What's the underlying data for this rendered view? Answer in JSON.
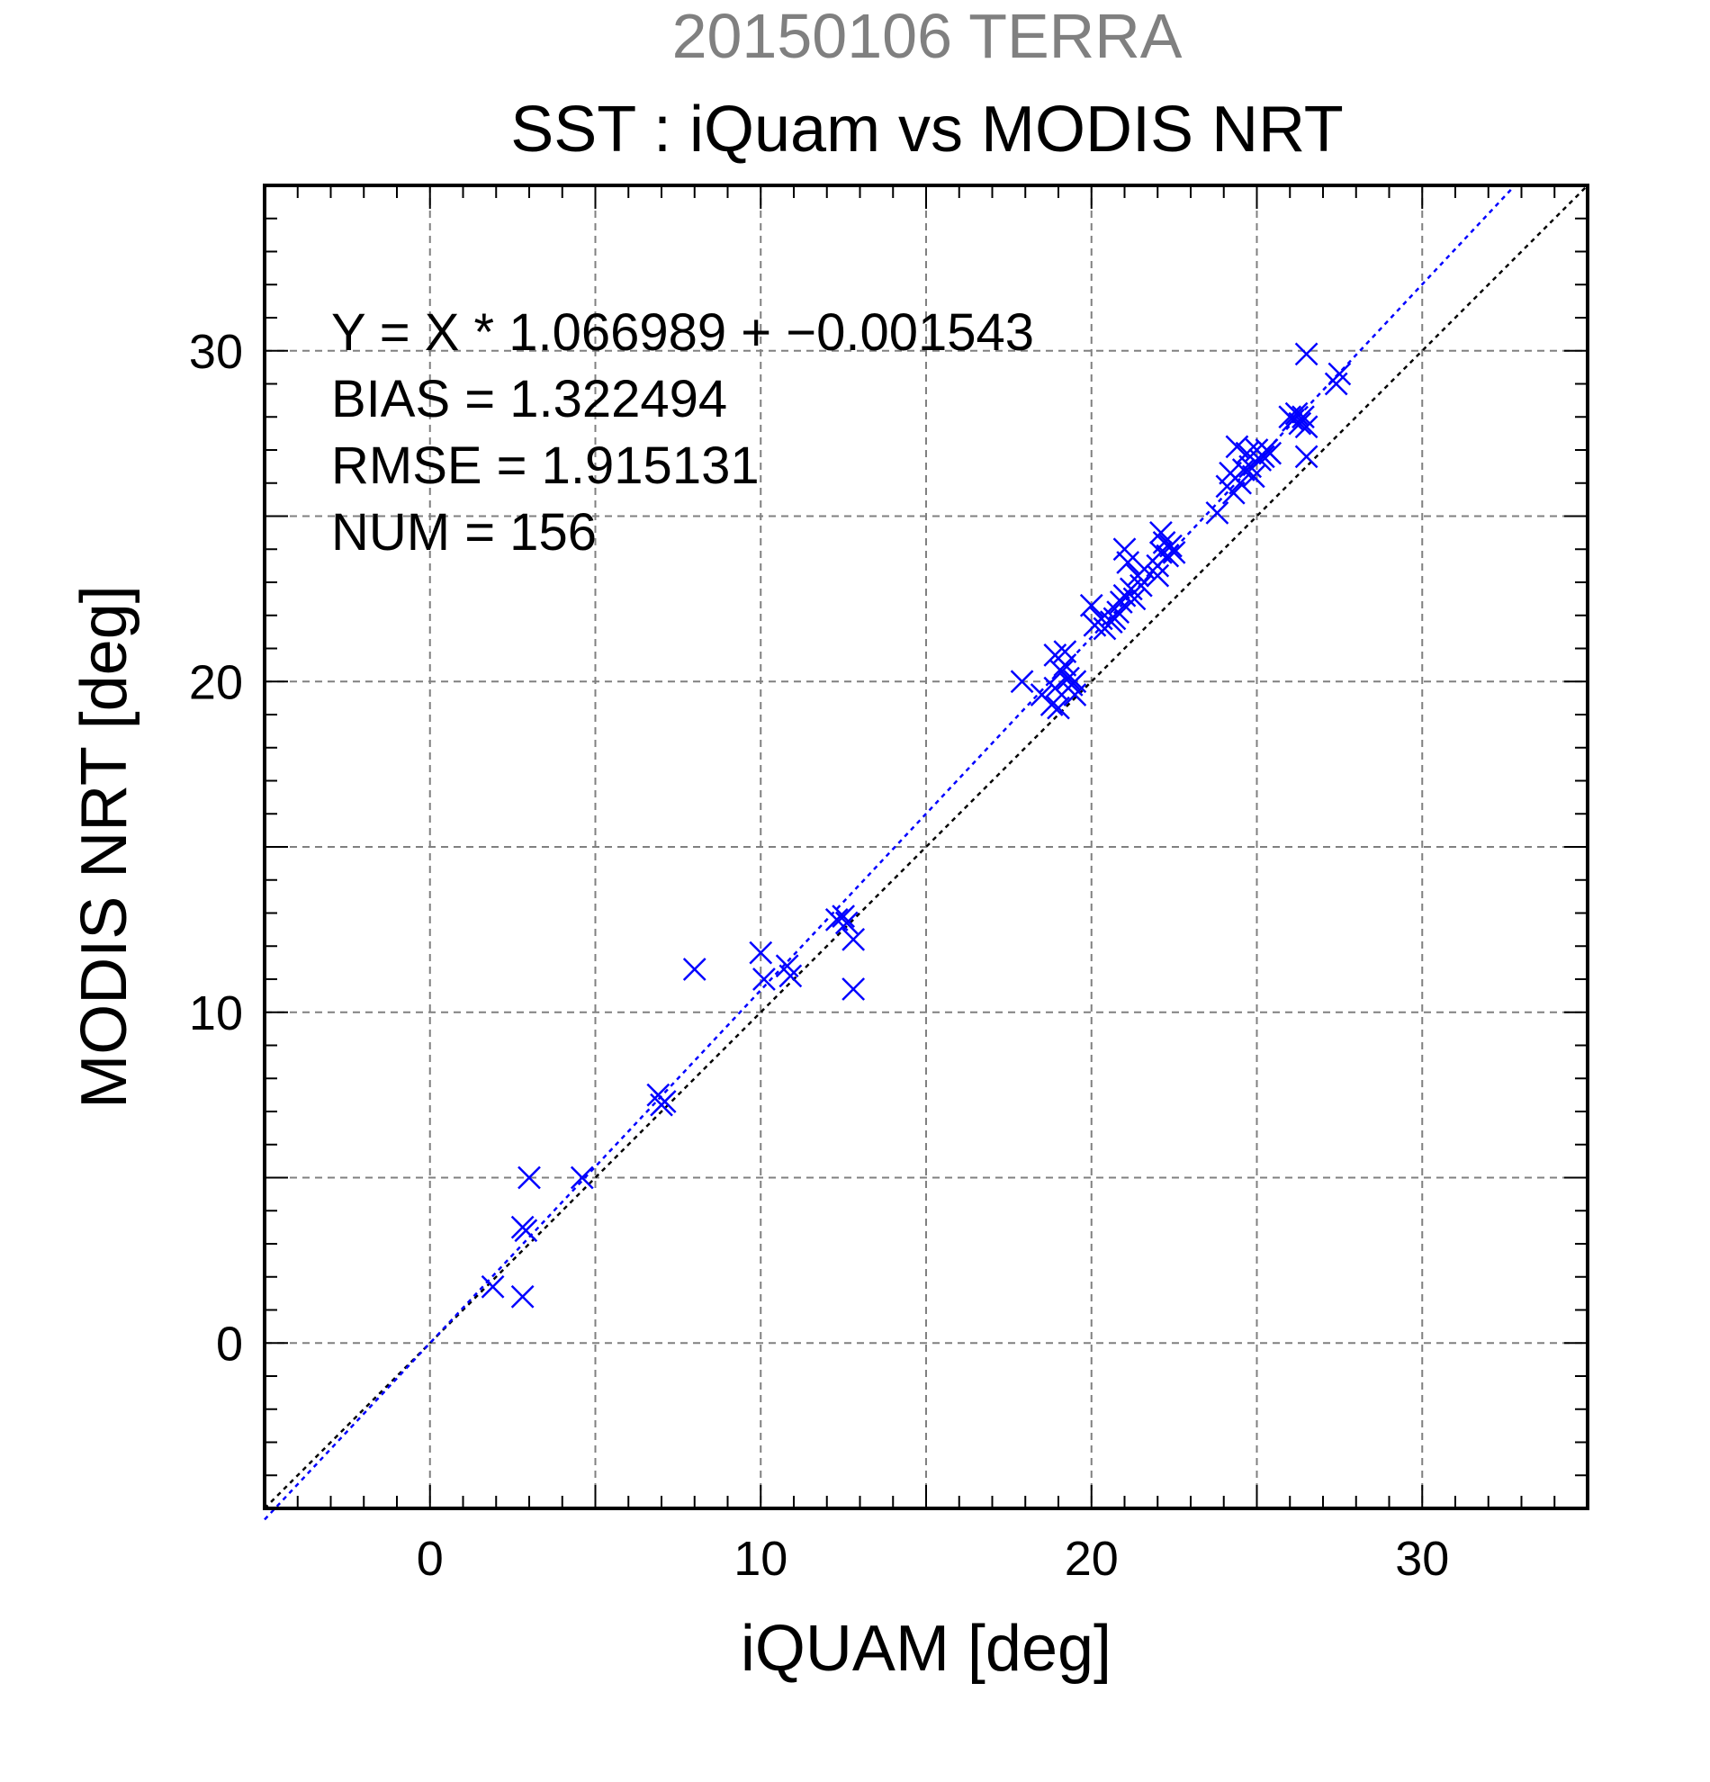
{
  "chart_data": {
    "type": "scatter",
    "supertitle": "20150106 TERRA",
    "title": "SST : iQuam vs MODIS NRT",
    "xlabel": "iQUAM [deg]",
    "ylabel": "MODIS NRT [deg]",
    "xlim": [
      -5,
      35
    ],
    "ylim": [
      -5,
      35
    ],
    "xticks": [
      0,
      10,
      20,
      30
    ],
    "yticks": [
      0,
      10,
      20,
      30
    ],
    "grid": true,
    "stats": {
      "equation": "Y = X * 1.066989 + −0.001543",
      "bias": "BIAS = 1.322494",
      "rmse": "RMSE = 1.915131",
      "num": "NUM = 156"
    },
    "regression": {
      "slope": 1.066989,
      "intercept": -0.001543
    },
    "marker_color": "#0000ff",
    "points": [
      [
        1.9,
        1.7
      ],
      [
        2.8,
        1.4
      ],
      [
        2.8,
        3.5
      ],
      [
        2.9,
        3.4
      ],
      [
        3.0,
        5.0
      ],
      [
        4.6,
        5.0
      ],
      [
        6.9,
        7.5
      ],
      [
        7.0,
        7.2
      ],
      [
        7.1,
        7.3
      ],
      [
        8.0,
        11.3
      ],
      [
        10.0,
        11.8
      ],
      [
        10.1,
        11.0
      ],
      [
        10.8,
        11.4
      ],
      [
        10.9,
        11.1
      ],
      [
        12.3,
        12.8
      ],
      [
        12.5,
        12.9
      ],
      [
        12.6,
        12.7
      ],
      [
        12.8,
        12.2
      ],
      [
        12.8,
        10.7
      ],
      [
        17.9,
        20.0
      ],
      [
        18.5,
        19.6
      ],
      [
        18.8,
        19.3
      ],
      [
        18.9,
        19.8
      ],
      [
        18.9,
        20.8
      ],
      [
        19.0,
        19.2
      ],
      [
        19.1,
        20.3
      ],
      [
        19.2,
        20.5
      ],
      [
        19.2,
        20.9
      ],
      [
        19.3,
        20.1
      ],
      [
        19.4,
        19.9
      ],
      [
        19.5,
        20.0
      ],
      [
        19.5,
        19.6
      ],
      [
        20.0,
        22.3
      ],
      [
        20.1,
        21.7
      ],
      [
        20.3,
        21.9
      ],
      [
        20.4,
        21.6
      ],
      [
        20.6,
        21.8
      ],
      [
        20.7,
        21.9
      ],
      [
        20.8,
        22.1
      ],
      [
        20.9,
        22.4
      ],
      [
        21.0,
        22.6
      ],
      [
        21.0,
        24.0
      ],
      [
        21.1,
        23.6
      ],
      [
        21.2,
        22.8
      ],
      [
        21.3,
        22.5
      ],
      [
        21.4,
        23.2
      ],
      [
        21.5,
        22.9
      ],
      [
        21.6,
        23.4
      ],
      [
        22.0,
        23.5
      ],
      [
        22.0,
        23.2
      ],
      [
        22.1,
        23.9
      ],
      [
        22.1,
        24.5
      ],
      [
        22.2,
        24.2
      ],
      [
        22.3,
        23.8
      ],
      [
        22.4,
        24.1
      ],
      [
        22.5,
        23.9
      ],
      [
        23.8,
        25.1
      ],
      [
        24.1,
        25.9
      ],
      [
        24.2,
        26.3
      ],
      [
        24.3,
        25.7
      ],
      [
        24.4,
        27.1
      ],
      [
        24.5,
        26.0
      ],
      [
        24.6,
        26.4
      ],
      [
        24.7,
        26.9
      ],
      [
        24.8,
        26.5
      ],
      [
        24.9,
        26.2
      ],
      [
        25.0,
        27.0
      ],
      [
        25.1,
        26.7
      ],
      [
        25.2,
        26.8
      ],
      [
        25.3,
        27.0
      ],
      [
        25.4,
        26.9
      ],
      [
        26.0,
        28.0
      ],
      [
        26.1,
        27.9
      ],
      [
        26.2,
        28.1
      ],
      [
        26.3,
        27.8
      ],
      [
        26.4,
        28.0
      ],
      [
        26.5,
        27.7
      ],
      [
        26.5,
        26.8
      ],
      [
        26.5,
        29.9
      ],
      [
        27.4,
        29.0
      ],
      [
        27.5,
        29.3
      ]
    ]
  }
}
